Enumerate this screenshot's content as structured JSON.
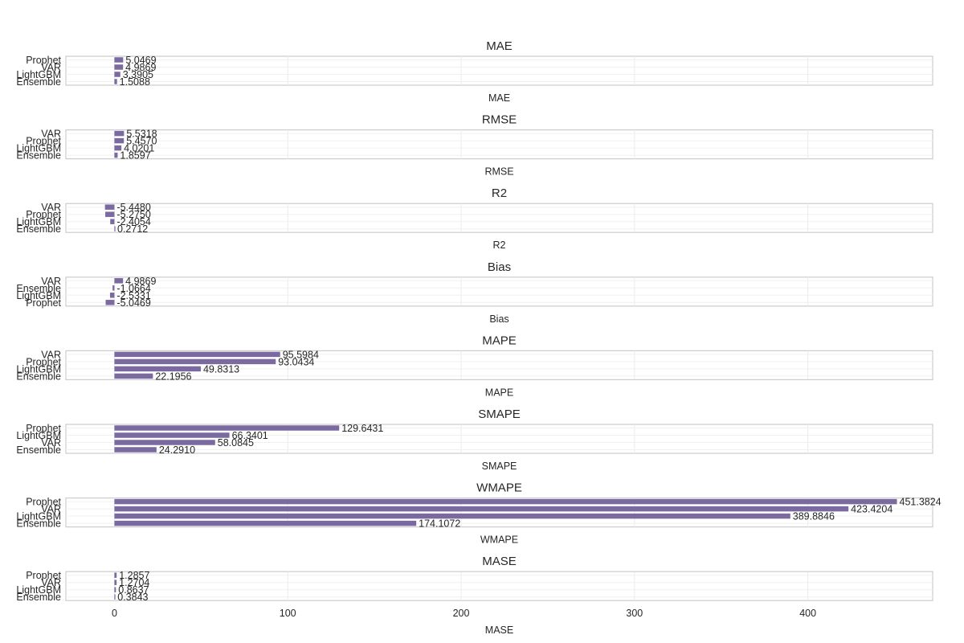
{
  "chart_data": {
    "type": "bar",
    "orientation": "horizontal",
    "bar_color": "#7a6aa0",
    "grid": true,
    "shared_xlim": [
      -28,
      472
    ],
    "xticks": [
      0,
      100,
      200,
      300,
      400
    ],
    "tick_labels": [
      "0",
      "100",
      "200",
      "300",
      "400"
    ],
    "panels": [
      {
        "title": "MAE",
        "xlabel": "MAE",
        "categories": [
          "Prophet",
          "VAR",
          "LightGBM",
          "Ensemble"
        ],
        "values": [
          5.0469,
          4.9869,
          3.3905,
          1.5088
        ],
        "value_labels": [
          "5.0469",
          "4.9869",
          "3.3905",
          "1.5088"
        ]
      },
      {
        "title": "RMSE",
        "xlabel": "RMSE",
        "categories": [
          "VAR",
          "Prophet",
          "LightGBM",
          "Ensemble"
        ],
        "values": [
          5.5318,
          5.457,
          4.0201,
          1.8597
        ],
        "value_labels": [
          "5.5318",
          "5.4570",
          "4.0201",
          "1.8597"
        ]
      },
      {
        "title": "R2",
        "xlabel": "R2",
        "categories": [
          "VAR",
          "Prophet",
          "LightGBM",
          "Ensemble"
        ],
        "values": [
          -5.448,
          -5.275,
          -2.4054,
          0.2712
        ],
        "value_labels": [
          "-5.4480",
          "-5.2750",
          "-2.4054",
          "0.2712"
        ]
      },
      {
        "title": "Bias",
        "xlabel": "Bias",
        "categories": [
          "VAR",
          "Ensemble",
          "LightGBM",
          "Prophet"
        ],
        "values": [
          4.9869,
          -1.0664,
          -2.5331,
          -5.0469
        ],
        "value_labels": [
          "4.9869",
          "-1.0664",
          "-2.5331",
          "-5.0469"
        ]
      },
      {
        "title": "MAPE",
        "xlabel": "MAPE",
        "categories": [
          "VAR",
          "Prophet",
          "LightGBM",
          "Ensemble"
        ],
        "values": [
          95.5984,
          93.0434,
          49.8313,
          22.1956
        ],
        "value_labels": [
          "95.5984",
          "93.0434",
          "49.8313",
          "22.1956"
        ]
      },
      {
        "title": "SMAPE",
        "xlabel": "SMAPE",
        "categories": [
          "Prophet",
          "LightGBM",
          "VAR",
          "Ensemble"
        ],
        "values": [
          129.6431,
          66.3401,
          58.0845,
          24.291
        ],
        "value_labels": [
          "129.6431",
          "66.3401",
          "58.0845",
          "24.2910"
        ]
      },
      {
        "title": "WMAPE",
        "xlabel": "WMAPE",
        "categories": [
          "Prophet",
          "VAR",
          "LightGBM",
          "Ensemble"
        ],
        "values": [
          451.3824,
          423.4204,
          389.8846,
          174.1072
        ],
        "value_labels": [
          "451.3824",
          "423.4204",
          "389.8846",
          "174.1072"
        ]
      },
      {
        "title": "MASE",
        "xlabel": "MASE",
        "categories": [
          "Prophet",
          "VAR",
          "LightGBM",
          "Ensemble"
        ],
        "values": [
          1.2857,
          1.2704,
          0.8637,
          0.3843
        ],
        "value_labels": [
          "1.2857",
          "1.2704",
          "0.8637",
          "0.3843"
        ]
      }
    ]
  }
}
